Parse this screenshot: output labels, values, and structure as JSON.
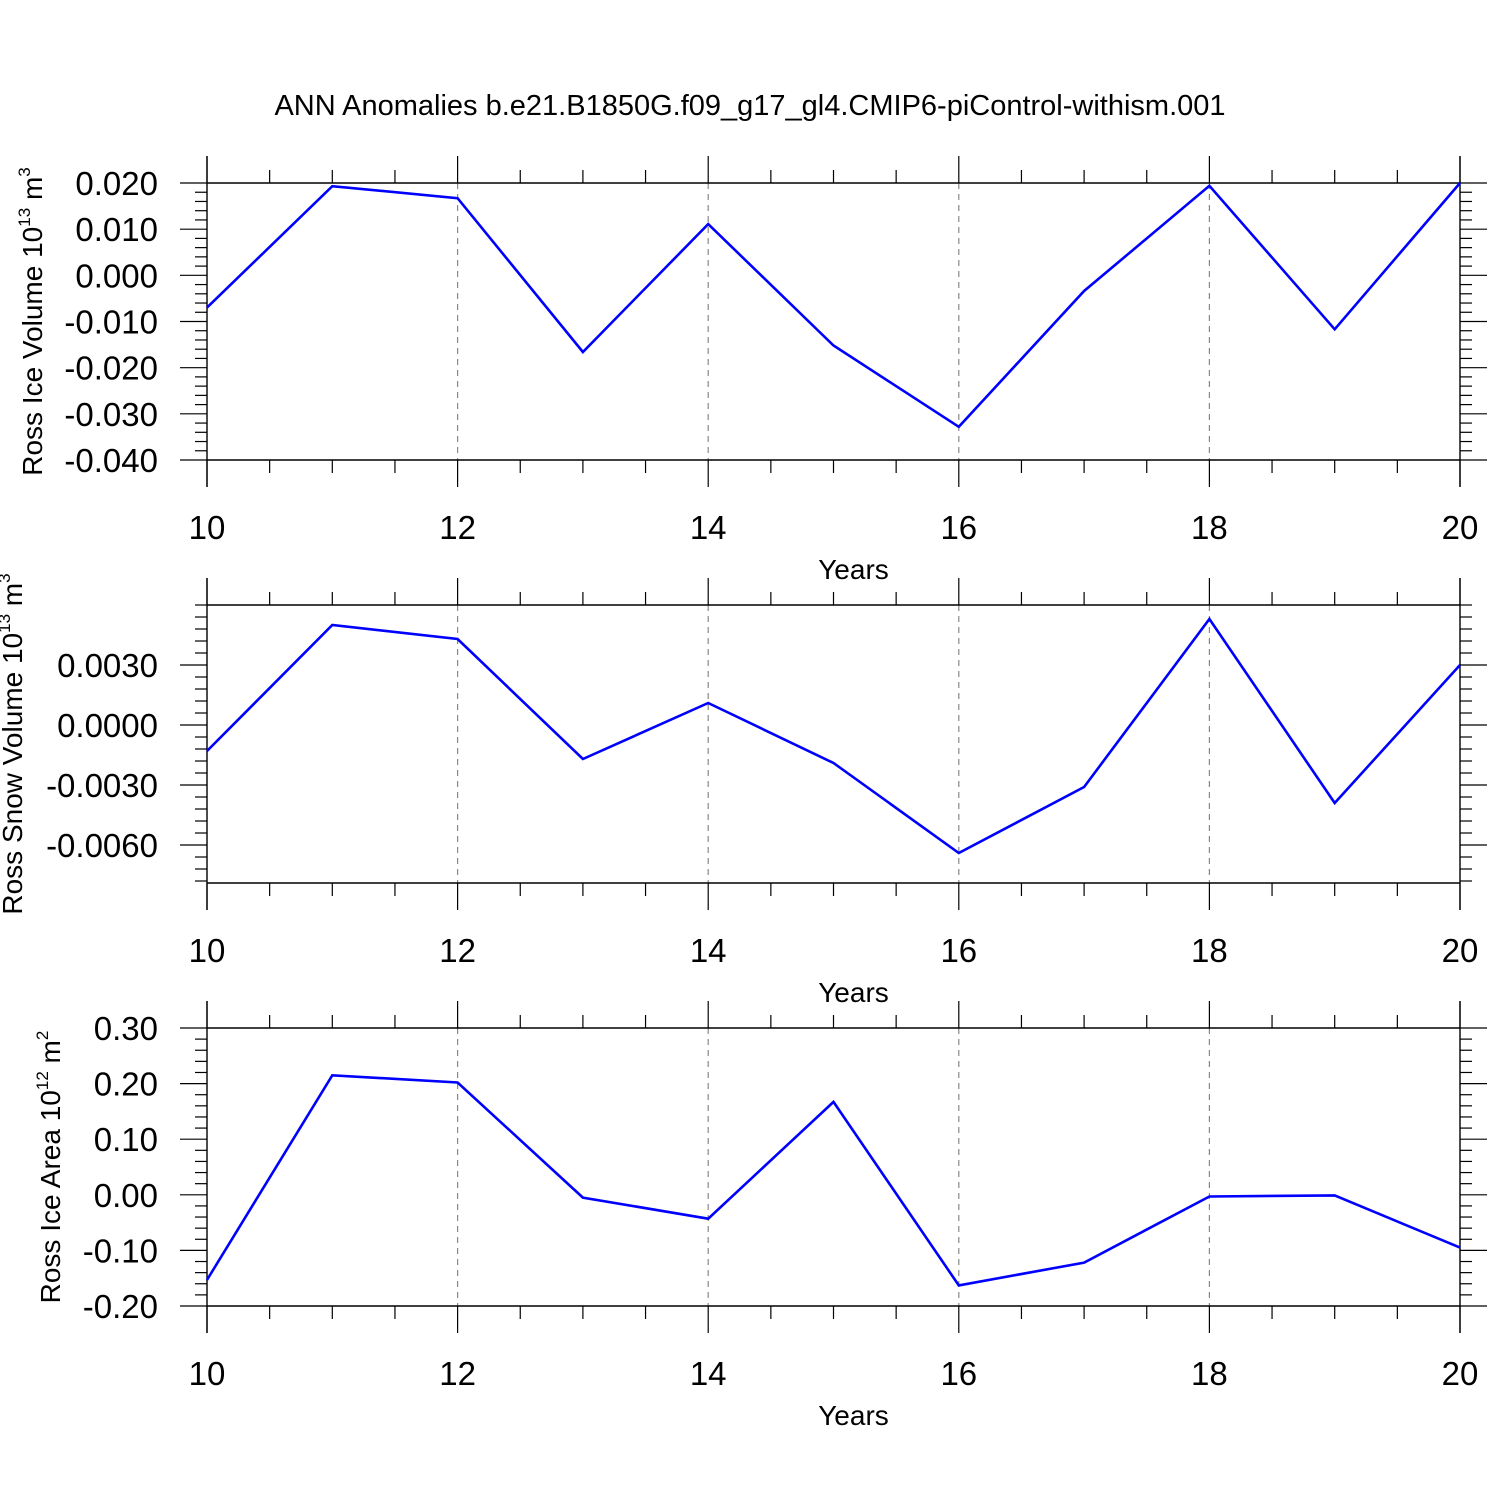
{
  "title": "ANN Anomalies b.e21.B1850G.f09_g17_gl4.CMIP6-piControl-withism.001",
  "chart_data": [
    {
      "type": "line",
      "title": "",
      "xlabel": "Years",
      "ylabel": "Ross Ice Volume 10",
      "ylabel_exp": "13",
      "ylabel_unit": "m",
      "ylabel_unit_exp": "3",
      "xlim": [
        10,
        20
      ],
      "ylim": [
        -0.04,
        0.02
      ],
      "xticks": [
        10,
        12,
        14,
        16,
        18,
        20
      ],
      "yticks": [
        0.02,
        0.01,
        0.0,
        -0.01,
        -0.02,
        -0.03,
        -0.04
      ],
      "ytick_labels": [
        "0.020",
        "0.010",
        "0.000",
        "-0.010",
        "-0.020",
        "-0.030",
        "-0.040"
      ],
      "grid": "vertical dashed at major x ticks",
      "series": [
        {
          "color": "#0000ff",
          "x": [
            10,
            11,
            12,
            13,
            14,
            15,
            16,
            17,
            18,
            19,
            20
          ],
          "values": [
            -0.007,
            0.0193,
            0.0167,
            -0.0166,
            0.0111,
            -0.0152,
            -0.0328,
            -0.0034,
            0.0194,
            -0.0117,
            0.02
          ]
        }
      ]
    },
    {
      "type": "line",
      "title": "",
      "xlabel": "Years",
      "ylabel": "Ross Snow Volume 10",
      "ylabel_exp": "13",
      "ylabel_unit": "m",
      "ylabel_unit_exp": "3",
      "xlim": [
        10,
        20
      ],
      "ylim": [
        -0.0079,
        0.006
      ],
      "xticks": [
        10,
        12,
        14,
        16,
        18,
        20
      ],
      "yticks": [
        0.003,
        0.0,
        -0.003,
        -0.006
      ],
      "ytick_labels": [
        "0.0030",
        "0.0000",
        "-0.0030",
        "-0.0060"
      ],
      "grid": "vertical dashed at major x ticks",
      "series": [
        {
          "color": "#0000ff",
          "x": [
            10,
            11,
            12,
            13,
            14,
            15,
            16,
            17,
            18,
            19,
            20
          ],
          "values": [
            -0.0013,
            0.005,
            0.0043,
            -0.0017,
            0.0011,
            -0.0019,
            -0.0064,
            -0.0031,
            0.0053,
            -0.0039,
            0.003
          ]
        }
      ]
    },
    {
      "type": "line",
      "title": "",
      "xlabel": "Years",
      "ylabel": "Ross Ice Area 10",
      "ylabel_exp": "12",
      "ylabel_unit": "m",
      "ylabel_unit_exp": "2",
      "xlim": [
        10,
        20
      ],
      "ylim": [
        -0.2,
        0.3
      ],
      "xticks": [
        10,
        12,
        14,
        16,
        18,
        20
      ],
      "yticks": [
        0.3,
        0.2,
        0.1,
        0.0,
        -0.1,
        -0.2
      ],
      "ytick_labels": [
        "0.30",
        "0.20",
        "0.10",
        "0.00",
        "-0.10",
        "-0.20"
      ],
      "grid": "vertical dashed at major x ticks",
      "series": [
        {
          "color": "#0000ff",
          "x": [
            10,
            11,
            12,
            13,
            14,
            15,
            16,
            17,
            18,
            19,
            20
          ],
          "values": [
            -0.153,
            0.215,
            0.202,
            -0.005,
            -0.043,
            0.167,
            -0.163,
            -0.122,
            -0.003,
            -0.001,
            -0.095
          ]
        }
      ]
    }
  ]
}
